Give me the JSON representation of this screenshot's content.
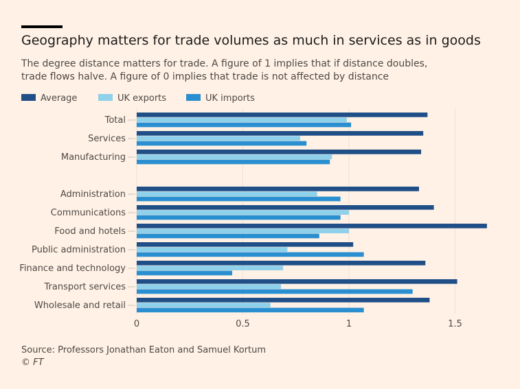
{
  "title": "Geography matters for trade volumes as much in services as in goods",
  "subtitle": "The degree distance matters for trade. A figure of 1 implies that if distance doubles, trade flows halve. A figure of 0 implies that trade is not affected by distance",
  "source": "Source: Professors Jonathan Eaton and Samuel Kortum",
  "credit": "© FT",
  "chart_data": {
    "type": "bar",
    "orientation": "horizontal",
    "categories": [
      "Total",
      "Services",
      "Manufacturing",
      "",
      "Administration",
      "Communications",
      "Food and hotels",
      "Public administration",
      "Finance and technology",
      "Transport services",
      "Wholesale and retail"
    ],
    "series": [
      {
        "name": "Average",
        "color": "#204f87",
        "values": [
          1.37,
          1.35,
          1.34,
          null,
          1.33,
          1.4,
          1.65,
          1.02,
          1.36,
          1.51,
          1.38
        ]
      },
      {
        "name": "UK exports",
        "color": "#8fd0ea",
        "values": [
          0.99,
          0.77,
          0.92,
          null,
          0.85,
          1.0,
          1.0,
          0.71,
          0.69,
          0.68,
          0.63
        ]
      },
      {
        "name": "UK imports",
        "color": "#2a8fd0",
        "values": [
          1.01,
          0.8,
          0.91,
          null,
          0.96,
          0.96,
          0.86,
          1.07,
          0.45,
          1.3,
          1.07
        ]
      }
    ],
    "xlim": [
      0,
      1.7
    ],
    "xticks": [
      0,
      0.5,
      1,
      1.5
    ],
    "xtick_labels": [
      "0",
      "0.5",
      "1",
      "1.5"
    ],
    "grid": true,
    "legend": "top-left"
  }
}
